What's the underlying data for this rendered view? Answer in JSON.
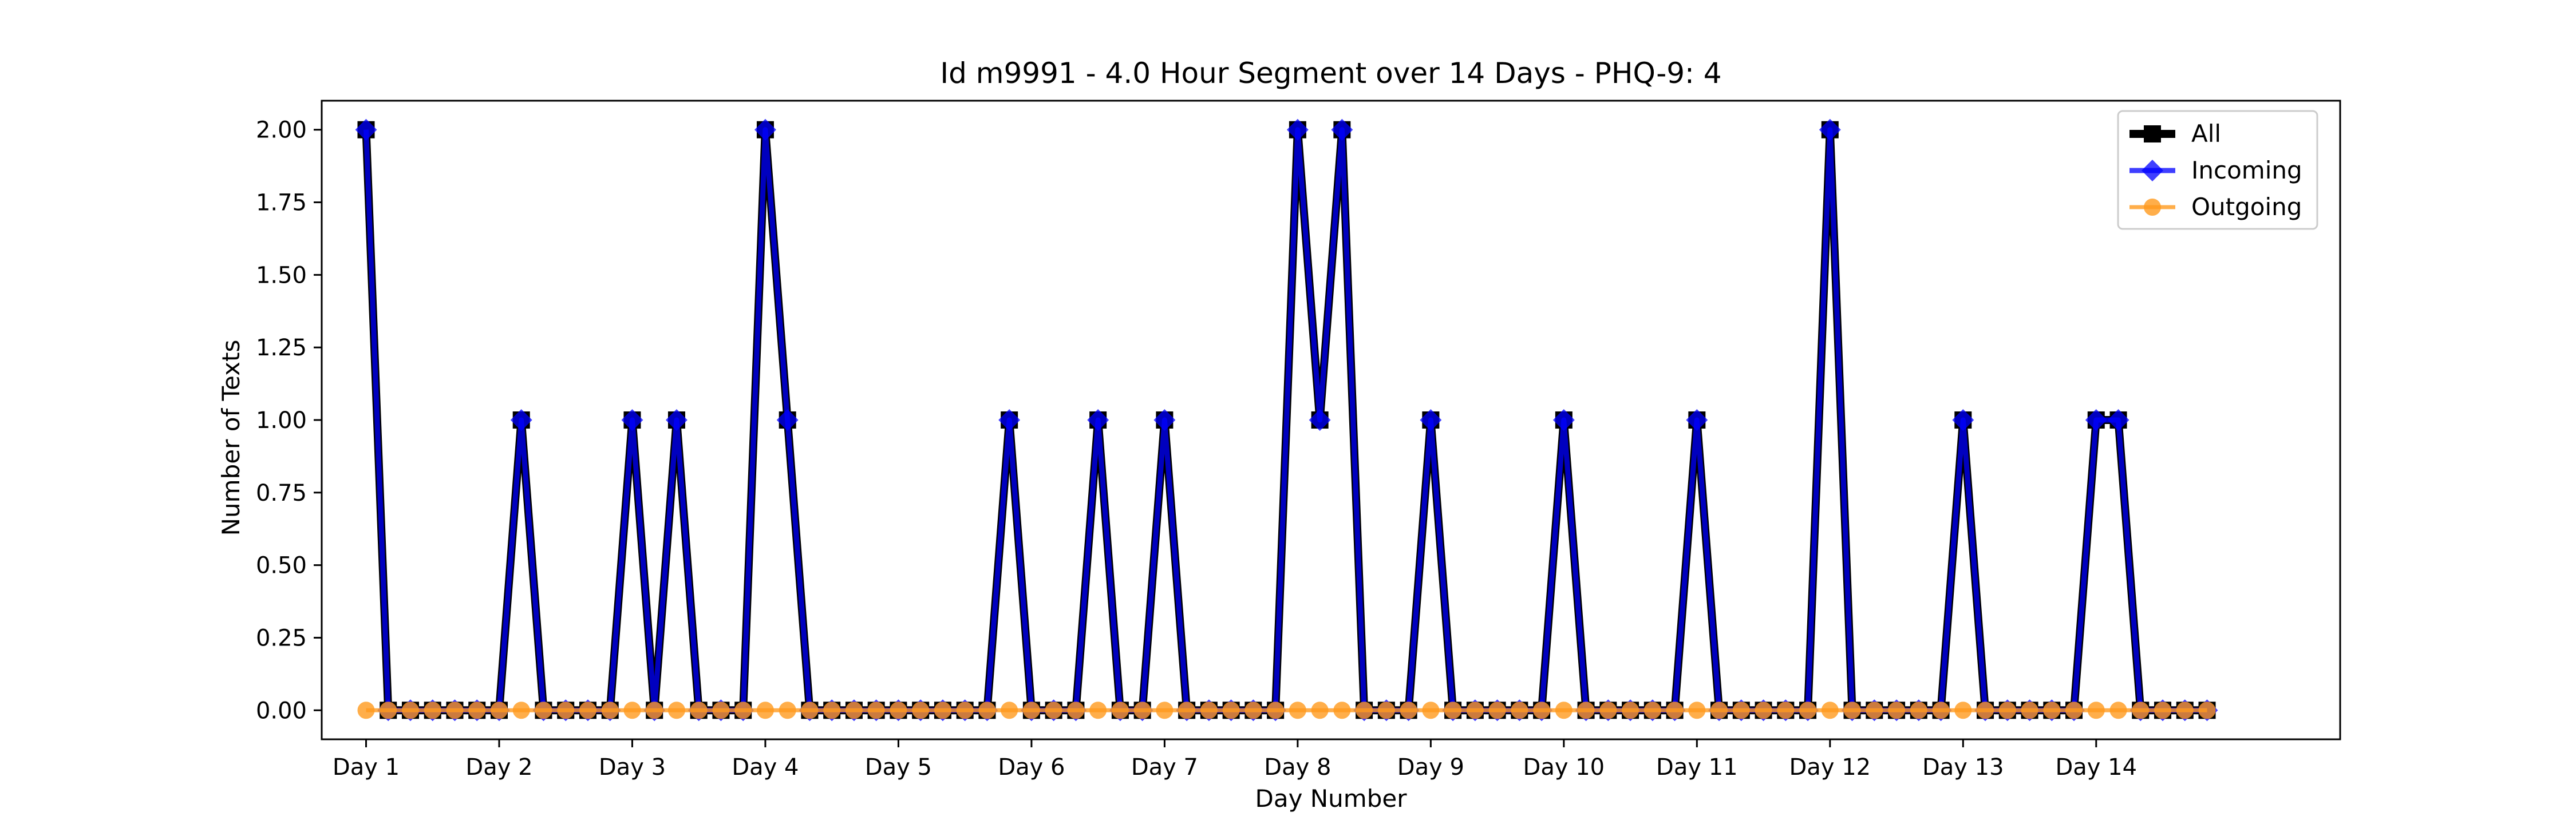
{
  "chart_data": {
    "type": "line",
    "title": "Id m9991 - 4.0 Hour Segment over 14 Days - PHQ-9: 4",
    "xlabel": "Day Number",
    "ylabel": "Number of Texts",
    "ylim": [
      -0.1,
      2.1
    ],
    "yticks": [
      "0.00",
      "0.25",
      "0.50",
      "0.75",
      "1.00",
      "1.25",
      "1.50",
      "1.75",
      "2.00"
    ],
    "ytick_values": [
      0,
      0.25,
      0.5,
      0.75,
      1.0,
      1.25,
      1.5,
      1.75,
      2.0
    ],
    "xlim": [
      -2,
      89
    ],
    "xtick_positions": [
      0,
      6,
      12,
      18,
      24,
      30,
      36,
      42,
      48,
      54,
      60,
      66,
      72,
      78
    ],
    "xtick_labels": [
      "Day 1",
      "Day 2",
      "Day 3",
      "Day 4",
      "Day 5",
      "Day 6",
      "Day 7",
      "Day 8",
      "Day 9",
      "Day 10",
      "Day 11",
      "Day 12",
      "Day 13",
      "Day 14"
    ],
    "grid": false,
    "legend_position": "top-right",
    "x": [
      0,
      1,
      2,
      3,
      4,
      5,
      6,
      7,
      8,
      9,
      10,
      11,
      12,
      13,
      14,
      15,
      16,
      17,
      18,
      19,
      20,
      21,
      22,
      23,
      24,
      25,
      26,
      27,
      28,
      29,
      30,
      31,
      32,
      33,
      34,
      35,
      36,
      37,
      38,
      39,
      40,
      41,
      42,
      43,
      44,
      45,
      46,
      47,
      48,
      49,
      50,
      51,
      52,
      53,
      54,
      55,
      56,
      57,
      58,
      59,
      60,
      61,
      62,
      63,
      64,
      65,
      66,
      67,
      68,
      69,
      70,
      71,
      72,
      73,
      74,
      75,
      76,
      77,
      78,
      79,
      80,
      81,
      82,
      83
    ],
    "series": [
      {
        "name": "All",
        "color": "#000000",
        "marker": "square",
        "values": [
          2,
          0,
          0,
          0,
          0,
          0,
          0,
          1,
          0,
          0,
          0,
          0,
          1,
          0,
          1,
          0,
          0,
          0,
          2,
          1,
          0,
          0,
          0,
          0,
          0,
          0,
          0,
          0,
          0,
          1,
          0,
          0,
          0,
          1,
          0,
          0,
          1,
          0,
          0,
          0,
          0,
          0,
          2,
          1,
          2,
          0,
          0,
          0,
          1,
          0,
          0,
          0,
          0,
          0,
          1,
          0,
          0,
          0,
          0,
          0,
          1,
          0,
          0,
          0,
          0,
          0,
          2,
          0,
          0,
          0,
          0,
          0,
          1,
          0,
          0,
          0,
          0,
          0,
          1,
          1,
          0,
          0,
          0,
          0
        ]
      },
      {
        "name": "Incoming",
        "color": "#0000ff",
        "marker": "diamond",
        "values": [
          2,
          0,
          0,
          0,
          0,
          0,
          0,
          1,
          0,
          0,
          0,
          0,
          1,
          0,
          1,
          0,
          0,
          0,
          2,
          1,
          0,
          0,
          0,
          0,
          0,
          0,
          0,
          0,
          0,
          1,
          0,
          0,
          0,
          1,
          0,
          0,
          1,
          0,
          0,
          0,
          0,
          0,
          2,
          1,
          2,
          0,
          0,
          0,
          1,
          0,
          0,
          0,
          0,
          0,
          1,
          0,
          0,
          0,
          0,
          0,
          1,
          0,
          0,
          0,
          0,
          0,
          2,
          0,
          0,
          0,
          0,
          0,
          1,
          0,
          0,
          0,
          0,
          0,
          1,
          1,
          0,
          0,
          0,
          0
        ]
      },
      {
        "name": "Outgoing",
        "color": "#ff9a1e",
        "marker": "circle",
        "values": [
          0,
          0,
          0,
          0,
          0,
          0,
          0,
          0,
          0,
          0,
          0,
          0,
          0,
          0,
          0,
          0,
          0,
          0,
          0,
          0,
          0,
          0,
          0,
          0,
          0,
          0,
          0,
          0,
          0,
          0,
          0,
          0,
          0,
          0,
          0,
          0,
          0,
          0,
          0,
          0,
          0,
          0,
          0,
          0,
          0,
          0,
          0,
          0,
          0,
          0,
          0,
          0,
          0,
          0,
          0,
          0,
          0,
          0,
          0,
          0,
          0,
          0,
          0,
          0,
          0,
          0,
          0,
          0,
          0,
          0,
          0,
          0,
          0,
          0,
          0,
          0,
          0,
          0,
          0,
          0,
          0,
          0,
          0,
          0
        ]
      }
    ]
  }
}
